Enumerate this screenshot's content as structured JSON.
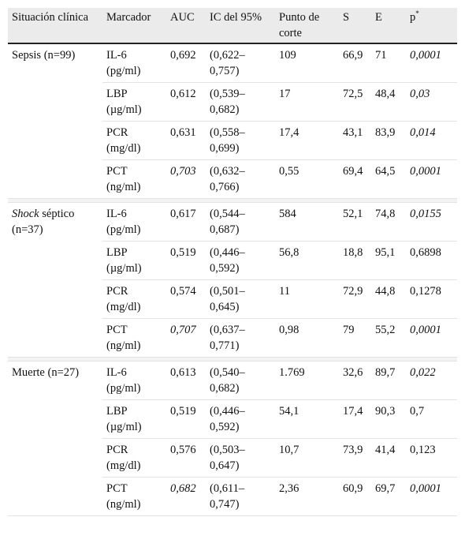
{
  "headers": [
    "Situación clínica",
    "Marcador",
    "AUC",
    "IC del 95%",
    "Punto de corte",
    "S",
    "E",
    "p"
  ],
  "p_sup": "*",
  "groups": [
    {
      "label_italic": "",
      "label": "Sepsis (n=99)",
      "rows": [
        {
          "marker": "IL-6",
          "unit": "(pg/ml)",
          "auc": "0,692",
          "auc_italic": false,
          "ic_a": "(0,622–",
          "ic_b": "0,757)",
          "cut": "109",
          "s": "66,9",
          "e": "71",
          "p": "0,0001",
          "p_italic": true
        },
        {
          "marker": "LBP",
          "unit": "(µg/ml)",
          "auc": "0,612",
          "auc_italic": false,
          "ic_a": "(0,539–",
          "ic_b": "0,682)",
          "cut": "17",
          "s": "72,5",
          "e": "48,4",
          "p": "0,03",
          "p_italic": true
        },
        {
          "marker": "PCR",
          "unit": "(mg/dl)",
          "auc": "0,631",
          "auc_italic": false,
          "ic_a": "(0,558–",
          "ic_b": "0,699)",
          "cut": "17,4",
          "s": "43,1",
          "e": "83,9",
          "p": "0,014",
          "p_italic": true
        },
        {
          "marker": "PCT",
          "unit": "(ng/ml)",
          "auc": "0,703",
          "auc_italic": true,
          "ic_a": "(0,632–",
          "ic_b": "0,766)",
          "cut": "0,55",
          "s": "69,4",
          "e": "64,5",
          "p": "0,0001",
          "p_italic": true
        }
      ]
    },
    {
      "label_italic": "Shock",
      "label": " séptico (n=37)",
      "rows": [
        {
          "marker": "IL-6",
          "unit": "(pg/ml)",
          "auc": "0,617",
          "auc_italic": false,
          "ic_a": "(0,544–",
          "ic_b": "0,687)",
          "cut": "584",
          "s": "52,1",
          "e": "74,8",
          "p": "0,0155",
          "p_italic": true
        },
        {
          "marker": "LBP",
          "unit": "(µg/ml)",
          "auc": "0,519",
          "auc_italic": false,
          "ic_a": "(0,446–",
          "ic_b": "0,592)",
          "cut": "56,8",
          "s": "18,8",
          "e": "95,1",
          "p": "0,6898",
          "p_italic": false
        },
        {
          "marker": "PCR",
          "unit": "(mg/dl)",
          "auc": "0,574",
          "auc_italic": false,
          "ic_a": "(0,501–",
          "ic_b": "0,645)",
          "cut": "11",
          "s": "72,9",
          "e": "44,8",
          "p": "0,1278",
          "p_italic": false
        },
        {
          "marker": "PCT",
          "unit": "(ng/ml)",
          "auc": "0,707",
          "auc_italic": true,
          "ic_a": "(0,637–",
          "ic_b": "0,771)",
          "cut": "0,98",
          "s": "79",
          "e": "55,2",
          "p": "0,0001",
          "p_italic": true
        }
      ]
    },
    {
      "label_italic": "",
      "label": "Muerte (n=27)",
      "rows": [
        {
          "marker": "IL-6",
          "unit": "(pg/ml)",
          "auc": "0,613",
          "auc_italic": false,
          "ic_a": "(0,540–",
          "ic_b": "0,682)",
          "cut": "1.769",
          "s": "32,6",
          "e": "89,7",
          "p": "0,022",
          "p_italic": true
        },
        {
          "marker": "LBP",
          "unit": "(µg/ml)",
          "auc": "0,519",
          "auc_italic": false,
          "ic_a": "(0,446–",
          "ic_b": "0,592)",
          "cut": "54,1",
          "s": "17,4",
          "e": "90,3",
          "p": "0,7",
          "p_italic": false
        },
        {
          "marker": "PCR",
          "unit": "(mg/dl)",
          "auc": "0,576",
          "auc_italic": false,
          "ic_a": "(0,503–",
          "ic_b": "0,647)",
          "cut": "10,7",
          "s": "73,9",
          "e": "41,4",
          "p": "0,123",
          "p_italic": false
        },
        {
          "marker": "PCT",
          "unit": "(ng/ml)",
          "auc": "0,682",
          "auc_italic": true,
          "ic_a": "(0,611–",
          "ic_b": "0,747)",
          "cut": "2,36",
          "s": "60,9",
          "e": "69,7",
          "p": "0,0001",
          "p_italic": true
        }
      ]
    }
  ]
}
